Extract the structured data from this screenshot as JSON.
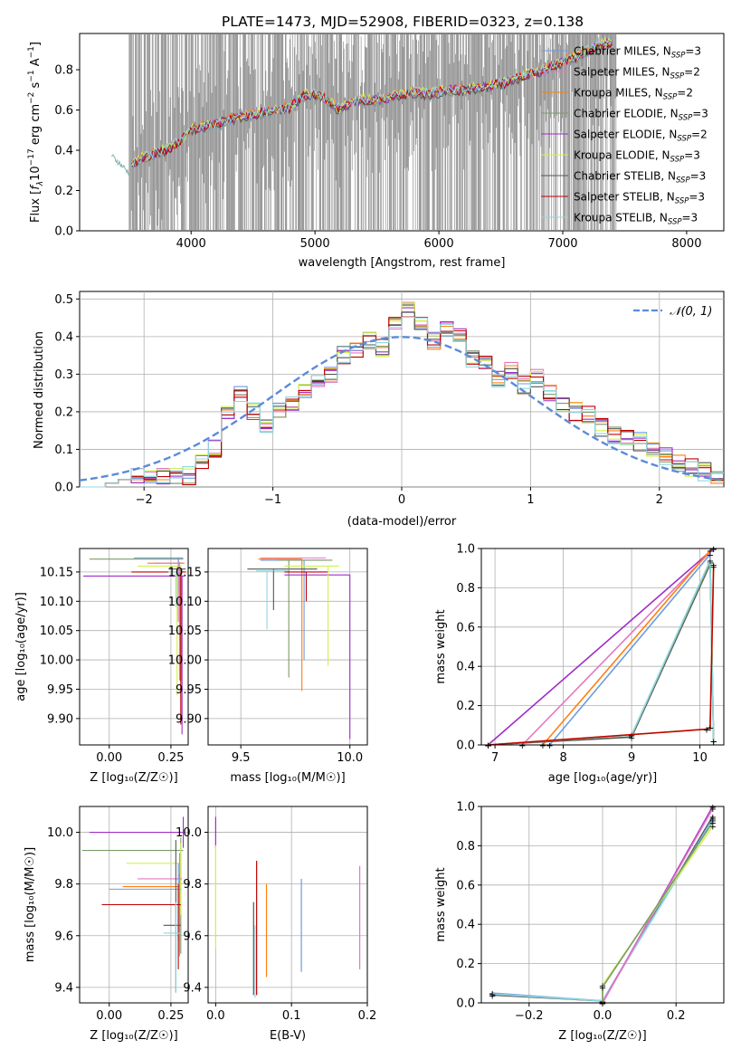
{
  "figure_title": "PLATE=1473, MJD=52908, FIBERID=0323, z=0.138",
  "colors": {
    "chabrier_miles": "#6e9be0",
    "salpeter_miles": "#e377c2",
    "kroupa_miles": "#ff7f0e",
    "chabrier_elodie": "#7b9b6a",
    "salpeter_elodie": "#a02cc8",
    "kroupa_elodie": "#d0f050",
    "chabrier_stelib": "#555555",
    "salpeter_stelib": "#c00000",
    "kroupa_stelib": "#8fd8e0",
    "data_spectrum": "#808080",
    "gaussian": "#5b8bd9"
  },
  "legend_labels": [
    {
      "label": "Chabrier MILES, N",
      "sub": "SSP",
      "tail": "=3",
      "color": "#6e9be0"
    },
    {
      "label": "Salpeter MILES, N",
      "sub": "SSP",
      "tail": "=2",
      "color": "#e377c2"
    },
    {
      "label": "Kroupa MILES, N",
      "sub": "SSP",
      "tail": "=2",
      "color": "#ff7f0e"
    },
    {
      "label": "Chabrier ELODIE, N",
      "sub": "SSP",
      "tail": "=3",
      "color": "#7b9b6a"
    },
    {
      "label": "Salpeter ELODIE, N",
      "sub": "SSP",
      "tail": "=2",
      "color": "#a02cc8"
    },
    {
      "label": "Kroupa ELODIE, N",
      "sub": "SSP",
      "tail": "=3",
      "color": "#d0f050"
    },
    {
      "label": "Chabrier STELIB, N",
      "sub": "SSP",
      "tail": "=3",
      "color": "#555555"
    },
    {
      "label": "Salpeter STELIB, N",
      "sub": "SSP",
      "tail": "=3",
      "color": "#c00000"
    },
    {
      "label": "Kroupa STELIB, N",
      "sub": "SSP",
      "tail": "=3",
      "color": "#8fd8e0"
    }
  ],
  "chart_data": [
    {
      "id": "spectrum",
      "type": "line",
      "title": "PLATE=1473, MJD=52908, FIBERID=0323, z=0.138",
      "xlabel": "wavelength [Angstrom, rest frame]",
      "ylabel": "Flux [f",
      "ylabel_full": "Flux [fλ10⁻¹⁷ erg cm⁻² s⁻¹ A⁻¹]",
      "xlim": [
        3100,
        8300
      ],
      "ylim": [
        0,
        0.98
      ],
      "xticks": [
        4000,
        5000,
        6000,
        7000,
        8000
      ],
      "yticks": [
        0.0,
        0.2,
        0.4,
        0.6,
        0.8
      ],
      "model_continuum": {
        "x": [
          3500,
          3600,
          3700,
          3800,
          3900,
          4000,
          4100,
          4200,
          4300,
          4400,
          4500,
          4600,
          4700,
          4800,
          4900,
          5000,
          5100,
          5200,
          5300,
          5400,
          5500,
          5600,
          5700,
          5800,
          5900,
          6000,
          6100,
          6200,
          6300,
          6400,
          6500,
          6600,
          6700,
          6800,
          6900,
          7000,
          7100,
          7200,
          7300,
          7400
        ],
        "y": [
          0.33,
          0.36,
          0.38,
          0.4,
          0.44,
          0.5,
          0.52,
          0.53,
          0.55,
          0.57,
          0.58,
          0.59,
          0.6,
          0.61,
          0.67,
          0.68,
          0.65,
          0.6,
          0.64,
          0.65,
          0.65,
          0.66,
          0.68,
          0.69,
          0.68,
          0.69,
          0.7,
          0.7,
          0.71,
          0.72,
          0.73,
          0.75,
          0.77,
          0.79,
          0.81,
          0.84,
          0.86,
          0.89,
          0.92,
          0.94
        ]
      },
      "data_note_series": "noisy observed spectrum (grey)"
    },
    {
      "id": "residuals",
      "type": "line",
      "xlabel": "(data-model)/error",
      "ylabel": "Normed distribution",
      "xlim": [
        -2.5,
        2.5
      ],
      "ylim": [
        0,
        0.52
      ],
      "xticks": [
        -2,
        -1,
        0,
        1,
        2
      ],
      "yticks": [
        0.0,
        0.1,
        0.2,
        0.3,
        0.4,
        0.5
      ],
      "legend": "𝒩(0, 1)",
      "bin_edges": [
        -2.5,
        -2.4,
        -2.3,
        -2.2,
        -2.1,
        -2.0,
        -1.9,
        -1.8,
        -1.7,
        -1.6,
        -1.5,
        -1.4,
        -1.3,
        -1.2,
        -1.1,
        -1.0,
        -0.9,
        -0.8,
        -0.7,
        -0.6,
        -0.5,
        -0.4,
        -0.3,
        -0.2,
        -0.1,
        0.0,
        0.1,
        0.2,
        0.3,
        0.4,
        0.5,
        0.6,
        0.7,
        0.8,
        0.9,
        1.0,
        1.1,
        1.2,
        1.3,
        1.4,
        1.5,
        1.6,
        1.7,
        1.8,
        1.9,
        2.0,
        2.1,
        2.2,
        2.3,
        2.4,
        2.5
      ],
      "hist_mean": [
        0.0,
        0.0,
        0.01,
        0.02,
        0.03,
        0.03,
        0.03,
        0.03,
        0.03,
        0.07,
        0.1,
        0.19,
        0.25,
        0.2,
        0.17,
        0.2,
        0.22,
        0.25,
        0.29,
        0.3,
        0.35,
        0.36,
        0.39,
        0.37,
        0.44,
        0.47,
        0.44,
        0.39,
        0.42,
        0.4,
        0.34,
        0.33,
        0.29,
        0.31,
        0.27,
        0.29,
        0.25,
        0.22,
        0.2,
        0.19,
        0.16,
        0.14,
        0.13,
        0.12,
        0.1,
        0.08,
        0.06,
        0.05,
        0.04,
        0.03
      ]
    },
    {
      "id": "age_vs_Z",
      "type": "scatter",
      "xlabel": "Z [log₁₀(Z/Z☉)]",
      "ylabel": "age  [log₁₀(age/yr)]",
      "xlim": [
        -0.12,
        0.32
      ],
      "ylim": [
        9.855,
        10.19
      ],
      "xticks": [
        0.0,
        0.25
      ],
      "xticklabels": [
        "0.00",
        "0.25"
      ],
      "yticks": [
        9.9,
        9.95,
        10.0,
        10.05,
        10.1,
        10.15
      ],
      "yticklabels": [
        "9.90",
        "9.95",
        "10.00",
        "10.05",
        "10.10",
        "10.15"
      ]
    },
    {
      "id": "age_vs_mass",
      "type": "scatter",
      "xlabel": "mass [log₁₀(M/M☉)]",
      "xlim": [
        9.35,
        10.08
      ],
      "ylim": [
        9.855,
        10.19
      ],
      "xticks": [
        9.5,
        10.0
      ],
      "xticklabels": [
        "9.5",
        "10.0"
      ],
      "yticks": [
        9.9,
        9.95,
        10.0,
        10.05,
        10.1,
        10.15
      ],
      "yticklabels": [
        "9.90",
        "9.95",
        "10.00",
        "10.05",
        "10.10",
        "10.15"
      ]
    },
    {
      "id": "massweight_vs_age",
      "type": "line",
      "xlabel": "age  [log₁₀(age/yr)]",
      "ylabel": "mass weight",
      "xlim": [
        6.8,
        10.35
      ],
      "ylim": [
        0,
        1.0
      ],
      "xticks": [
        7,
        8,
        9,
        10
      ],
      "yticks": [
        0.0,
        0.2,
        0.4,
        0.6,
        0.8,
        1.0
      ],
      "yticklabels": [
        "0.0",
        "0.2",
        "0.4",
        "0.6",
        "0.8",
        "1.0"
      ],
      "series": [
        {
          "color": "#a02cc8",
          "x": [
            6.9,
            10.2
          ],
          "y": [
            0.0,
            1.0
          ]
        },
        {
          "color": "#e377c2",
          "x": [
            7.4,
            10.2
          ],
          "y": [
            0.0,
            1.0
          ]
        },
        {
          "color": "#ff7f0e",
          "x": [
            7.7,
            10.15
          ],
          "y": [
            0.0,
            0.99
          ]
        },
        {
          "color": "#6e9be0",
          "x": [
            7.8,
            10.15
          ],
          "y": [
            0.0,
            0.97
          ]
        },
        {
          "color": "#555555",
          "x": [
            6.9,
            9.0,
            10.15,
            10.2
          ],
          "y": [
            0.0,
            0.04,
            0.92,
            0.02
          ]
        },
        {
          "color": "#7b9b6a",
          "x": [
            6.9,
            9.0,
            10.15,
            10.2
          ],
          "y": [
            0.0,
            0.05,
            0.93,
            0.02
          ]
        },
        {
          "color": "#8fd8e0",
          "x": [
            6.9,
            9.0,
            10.15,
            10.2
          ],
          "y": [
            0.0,
            0.05,
            0.94,
            0.02
          ]
        },
        {
          "color": "#d0f050",
          "x": [
            6.9,
            10.1,
            10.15,
            10.2
          ],
          "y": [
            0.0,
            0.08,
            0.09,
            0.92
          ]
        },
        {
          "color": "#c00000",
          "x": [
            6.9,
            10.1,
            10.15,
            10.2
          ],
          "y": [
            0.0,
            0.08,
            0.09,
            0.91
          ]
        }
      ]
    },
    {
      "id": "mass_vs_Z",
      "type": "scatter",
      "xlabel": "Z [log₁₀(Z/Z☉)]",
      "ylabel": "mass [log₁₀(M/M☉)]",
      "xlim": [
        -0.12,
        0.32
      ],
      "ylim": [
        9.34,
        10.1
      ],
      "xticks": [
        0.0,
        0.25
      ],
      "xticklabels": [
        "0.00",
        "0.25"
      ],
      "yticks": [
        9.4,
        9.6,
        9.8,
        10.0
      ],
      "yticklabels": [
        "9.4",
        "9.6",
        "9.8",
        "10.0"
      ]
    },
    {
      "id": "mass_vs_EBV",
      "type": "scatter",
      "xlabel": "E(B-V)",
      "xlim": [
        -0.01,
        0.2
      ],
      "ylim": [
        9.34,
        10.1
      ],
      "xticks": [
        0.0,
        0.1,
        0.2
      ],
      "xticklabels": [
        "0.0",
        "0.1",
        "0.2"
      ],
      "yticks": [
        9.4,
        9.6,
        9.8,
        10.0
      ],
      "yticklabels": [
        "9.4",
        "9.6",
        "9.8",
        "10.0"
      ],
      "points": [
        {
          "color": "#a02cc8",
          "x": 0.0,
          "y": 10.0,
          "err": 0.06
        },
        {
          "color": "#d0f050",
          "x": 0.0,
          "y": 9.75,
          "err": 0.2
        },
        {
          "color": "#555555",
          "x": 0.05,
          "y": 9.55,
          "err": 0.18
        },
        {
          "color": "#8fd8e0",
          "x": 0.052,
          "y": 9.5,
          "err": 0.14
        },
        {
          "color": "#c00000",
          "x": 0.054,
          "y": 9.63,
          "err": 0.26
        },
        {
          "color": "#ff7f0e",
          "x": 0.067,
          "y": 9.62,
          "err": 0.18
        },
        {
          "color": "#6e9be0",
          "x": 0.113,
          "y": 9.64,
          "err": 0.18
        },
        {
          "color": "#e377c2",
          "x": 0.19,
          "y": 9.67,
          "err": 0.2
        }
      ]
    },
    {
      "id": "massweight_vs_Z",
      "type": "line",
      "xlabel": "Z [log₁₀(Z/Z☉)]",
      "ylabel": "mass weight",
      "xlim": [
        -0.33,
        0.33
      ],
      "ylim": [
        0,
        1.0
      ],
      "xticks": [
        -0.2,
        0.0,
        0.2
      ],
      "xticklabels": [
        "−0.2",
        "0.0",
        "0.2"
      ],
      "yticks": [
        0.0,
        0.2,
        0.4,
        0.6,
        0.8,
        1.0
      ],
      "yticklabels": [
        "0.0",
        "0.2",
        "0.4",
        "0.6",
        "0.8",
        "1.0"
      ],
      "series": [
        {
          "color": "#555555",
          "x": [
            -0.3,
            0.0,
            0.3
          ],
          "y": [
            0.04,
            0.01,
            0.95
          ]
        },
        {
          "color": "#6e9be0",
          "x": [
            -0.3,
            0.0,
            0.3
          ],
          "y": [
            0.05,
            0.01,
            0.94
          ]
        },
        {
          "color": "#8fd8e0",
          "x": [
            -0.3,
            0.0,
            0.3
          ],
          "y": [
            0.045,
            0.01,
            0.93
          ]
        },
        {
          "color": "#a02cc8",
          "x": [
            0.0,
            0.3
          ],
          "y": [
            0.0,
            1.0
          ]
        },
        {
          "color": "#e377c2",
          "x": [
            0.0,
            0.3
          ],
          "y": [
            0.0,
            0.99
          ]
        },
        {
          "color": "#d0f050",
          "x": [
            0.0,
            0.0,
            0.3
          ],
          "y": [
            0.0,
            0.09,
            0.9
          ]
        },
        {
          "color": "#7b9b6a",
          "x": [
            0.0,
            0.0,
            0.3
          ],
          "y": [
            0.0,
            0.08,
            0.92
          ]
        }
      ]
    }
  ]
}
